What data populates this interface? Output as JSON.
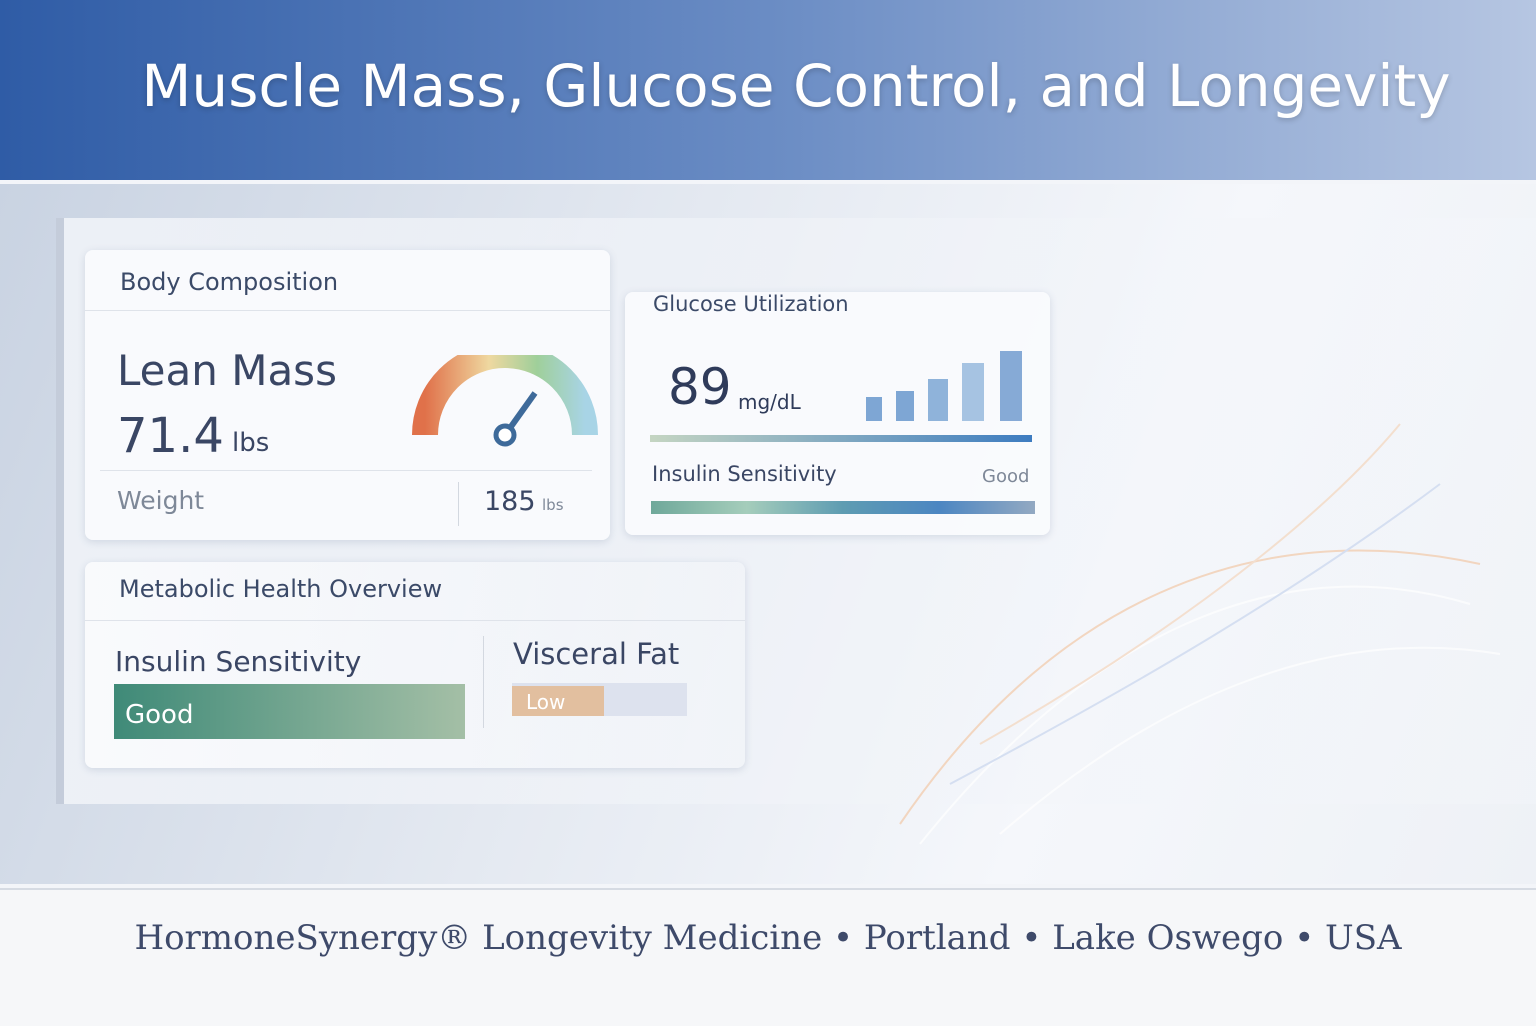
{
  "header": {
    "title": "Muscle Mass, Glucose Control, and Longevity"
  },
  "body_composition": {
    "title": "Body Composition",
    "lean_mass_label": "Lean Mass",
    "lean_mass_value": "71.4",
    "lean_mass_unit": "lbs",
    "weight_label": "Weight",
    "weight_value": "185",
    "weight_unit": "lbs"
  },
  "glucose_utilization": {
    "title": "Glucose Utilization",
    "value": "89",
    "unit": "mg/dL",
    "insulin_label": "Insulin Sensitivity",
    "insulin_status": "Good"
  },
  "metabolic_overview": {
    "title": "Metabolic Health Overview",
    "insulin_label": "Insulin Sensitivity",
    "insulin_status": "Good",
    "visceral_label": "Visceral Fat",
    "visceral_status": "Low"
  },
  "footer": {
    "text": "HormoneSynergy® Longevity Medicine • Portland • Lake Oswego • USA"
  }
}
